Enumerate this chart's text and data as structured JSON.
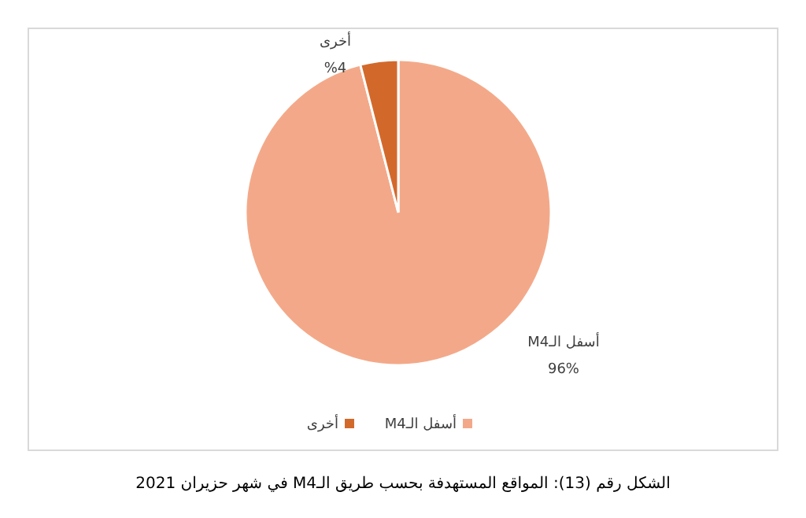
{
  "chart_data": {
    "type": "pie",
    "categories": [
      "أسفل الـM4",
      "أخرى"
    ],
    "values": [
      96,
      4
    ],
    "value_labels": [
      "96%",
      "%4"
    ],
    "colors": [
      "#f3a989",
      "#d2692b"
    ],
    "legend": "bottom",
    "annotations": [
      "الشكل رقم (13): المواقع المستهدفة بحسب طريق الـM4 في شهر حزيران 2021"
    ]
  }
}
